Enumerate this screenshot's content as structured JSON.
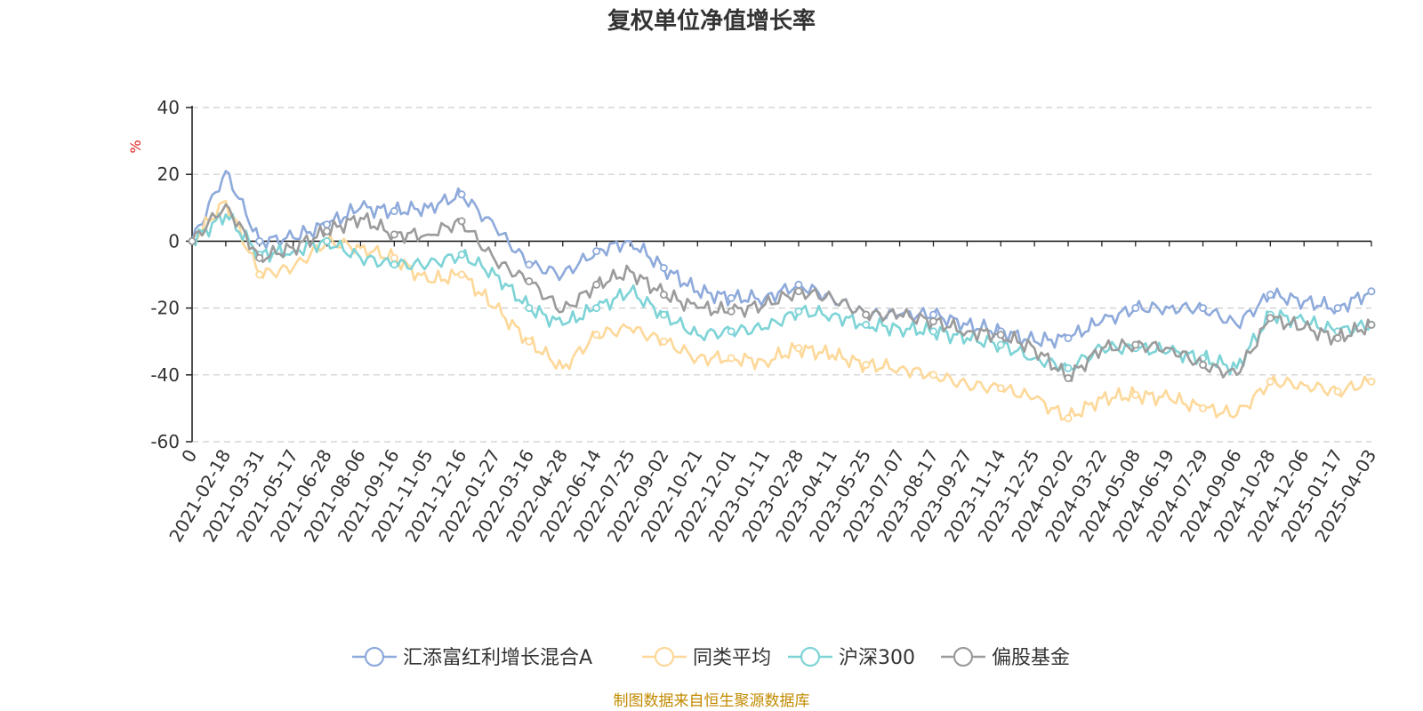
{
  "colors": {
    "fund": "#8eaadb",
    "peer_avg": "#fdd899",
    "csi300": "#7dd3d6",
    "equity_funds": "#9b9b9b",
    "unit_label": "#e02020",
    "source": "#c28a00",
    "grid": "#cccccc",
    "axis": "#222222"
  },
  "chart_data": {
    "type": "line",
    "title": "复权单位净值增长率",
    "ylabel": "%",
    "ylim": [
      -60,
      40
    ],
    "yticks": [
      -60,
      -40,
      -20,
      0,
      20,
      40
    ],
    "grid": "horizontal-dashed",
    "legend_position": "bottom-center",
    "source": "制图数据来自恒生聚源数据库",
    "x": [
      "0",
      "2021-02-18",
      "2021-03-31",
      "2021-05-17",
      "2021-06-28",
      "2021-08-06",
      "2021-09-16",
      "2021-11-05",
      "2021-12-16",
      "2022-01-27",
      "2022-03-16",
      "2022-04-28",
      "2022-06-14",
      "2022-07-25",
      "2022-09-02",
      "2022-10-21",
      "2022-12-01",
      "2023-01-11",
      "2023-02-28",
      "2023-04-11",
      "2023-05-25",
      "2023-07-07",
      "2023-08-17",
      "2023-09-27",
      "2023-11-14",
      "2023-12-25",
      "2024-02-02",
      "2024-03-22",
      "2024-05-08",
      "2024-06-19",
      "2024-07-29",
      "2024-09-06",
      "2024-10-28",
      "2024-12-06",
      "2025-01-17",
      "2025-04-03"
    ],
    "series": [
      {
        "name": "汇添富红利增长混合A",
        "color_key": "fund",
        "values": [
          0,
          21,
          0,
          1,
          5,
          10,
          9,
          10,
          14,
          4,
          -7,
          -10,
          -3,
          0,
          -8,
          -15,
          -17,
          -17,
          -13,
          -17,
          -22,
          -22,
          -22,
          -25,
          -27,
          -30,
          -29,
          -24,
          -20,
          -20,
          -20,
          -25,
          -16,
          -18,
          -20,
          -15
        ]
      },
      {
        "name": "同类平均",
        "color_key": "peer_avg",
        "values": [
          0,
          12,
          -10,
          -8,
          0,
          -2,
          -5,
          -12,
          -10,
          -20,
          -30,
          -38,
          -28,
          -26,
          -30,
          -35,
          -35,
          -36,
          -32,
          -34,
          -37,
          -38,
          -40,
          -43,
          -44,
          -47,
          -53,
          -47,
          -46,
          -47,
          -50,
          -52,
          -42,
          -43,
          -45,
          -42
        ]
      },
      {
        "name": "沪深300",
        "color_key": "csi300",
        "values": [
          0,
          8,
          -4,
          -3,
          0,
          -5,
          -7,
          -7,
          -4,
          -10,
          -20,
          -25,
          -20,
          -15,
          -22,
          -28,
          -27,
          -26,
          -21,
          -22,
          -25,
          -26,
          -27,
          -29,
          -31,
          -35,
          -38,
          -32,
          -32,
          -33,
          -35,
          -38,
          -22,
          -24,
          -27,
          -25
        ]
      },
      {
        "name": "偏股基金",
        "color_key": "equity_funds",
        "values": [
          0,
          11,
          -5,
          -2,
          3,
          7,
          2,
          2,
          6,
          -6,
          -12,
          -21,
          -13,
          -9,
          -16,
          -20,
          -21,
          -19,
          -15,
          -17,
          -22,
          -22,
          -24,
          -27,
          -28,
          -32,
          -41,
          -32,
          -31,
          -32,
          -37,
          -40,
          -23,
          -26,
          -29,
          -25
        ]
      }
    ]
  }
}
